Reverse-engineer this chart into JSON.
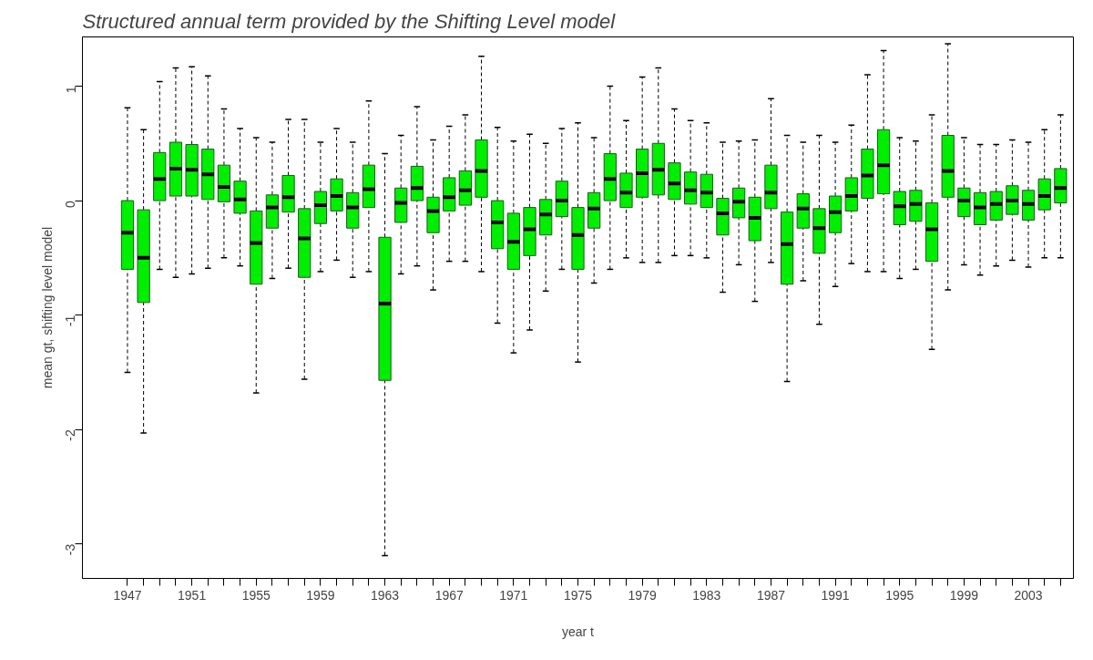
{
  "chart_data": {
    "type": "box",
    "title": "Structured annual term provided by the Shifting Level model",
    "xlabel": "year t",
    "ylabel": "mean gt, shifting level model",
    "color": "#00ee00",
    "xlim": [
      1944.2,
      2005.8
    ],
    "ylim": [
      -3.3,
      1.43
    ],
    "yticks": [
      -3,
      -2,
      -1,
      0,
      1
    ],
    "xticks": [
      1947,
      {
        "value": 1948,
        "label": null
      },
      {
        "value": 1949,
        "label": null
      },
      {
        "value": 1950,
        "label": null
      },
      1951,
      {
        "value": 1952,
        "label": null
      },
      {
        "value": 1953,
        "label": null
      },
      {
        "value": 1954,
        "label": null
      },
      1955,
      {
        "value": 1956,
        "label": null
      },
      {
        "value": 1957,
        "label": null
      },
      {
        "value": 1958,
        "label": null
      },
      1959,
      {
        "value": 1960,
        "label": null
      },
      {
        "value": 1961,
        "label": null
      },
      {
        "value": 1962,
        "label": null
      },
      1963,
      {
        "value": 1964,
        "label": null
      },
      {
        "value": 1965,
        "label": null
      },
      {
        "value": 1966,
        "label": null
      },
      1967,
      {
        "value": 1968,
        "label": null
      },
      {
        "value": 1969,
        "label": null
      },
      {
        "value": 1970,
        "label": null
      },
      1971,
      {
        "value": 1972,
        "label": null
      },
      {
        "value": 1973,
        "label": null
      },
      {
        "value": 1974,
        "label": null
      },
      1975,
      {
        "value": 1976,
        "label": null
      },
      {
        "value": 1977,
        "label": null
      },
      {
        "value": 1978,
        "label": null
      },
      1979,
      {
        "value": 1980,
        "label": null
      },
      {
        "value": 1981,
        "label": null
      },
      {
        "value": 1982,
        "label": null
      },
      1983,
      {
        "value": 1984,
        "label": null
      },
      {
        "value": 1985,
        "label": null
      },
      {
        "value": 1986,
        "label": null
      },
      1987,
      {
        "value": 1988,
        "label": null
      },
      {
        "value": 1989,
        "label": null
      },
      {
        "value": 1990,
        "label": null
      },
      1991,
      {
        "value": 1992,
        "label": null
      },
      {
        "value": 1993,
        "label": null
      },
      {
        "value": 1994,
        "label": null
      },
      1995,
      {
        "value": 1996,
        "label": null
      },
      {
        "value": 1997,
        "label": null
      },
      {
        "value": 1998,
        "label": null
      },
      1999,
      {
        "value": 2000,
        "label": null
      },
      {
        "value": 2001,
        "label": null
      },
      {
        "value": 2002,
        "label": null
      },
      2003,
      {
        "value": 2004,
        "label": null
      },
      {
        "value": 2005,
        "label": null
      }
    ],
    "grid": false,
    "x": [
      1947,
      1948,
      1949,
      1950,
      1951,
      1952,
      1953,
      1954,
      1955,
      1956,
      1957,
      1958,
      1959,
      1960,
      1961,
      1962,
      1963,
      1964,
      1965,
      1966,
      1967,
      1968,
      1969,
      1970,
      1971,
      1972,
      1973,
      1974,
      1975,
      1976,
      1977,
      1978,
      1979,
      1980,
      1981,
      1982,
      1983,
      1984,
      1985,
      1986,
      1987,
      1988,
      1989,
      1990,
      1991,
      1992,
      1993,
      1994,
      1995,
      1996,
      1997,
      1998,
      1999,
      2000,
      2001,
      2002,
      2003,
      2004,
      2005
    ],
    "boxes": [
      {
        "low": -1.5,
        "q1": -0.6,
        "median": -0.28,
        "q3": 0.0,
        "high": 0.81
      },
      {
        "low": -2.03,
        "q1": -0.89,
        "median": -0.5,
        "q3": -0.08,
        "high": 0.62
      },
      {
        "low": -0.6,
        "q1": 0.0,
        "median": 0.19,
        "q3": 0.42,
        "high": 1.04
      },
      {
        "low": -0.67,
        "q1": 0.04,
        "median": 0.28,
        "q3": 0.51,
        "high": 1.16
      },
      {
        "low": -0.64,
        "q1": 0.04,
        "median": 0.27,
        "q3": 0.49,
        "high": 1.17
      },
      {
        "low": -0.59,
        "q1": 0.01,
        "median": 0.23,
        "q3": 0.45,
        "high": 1.09
      },
      {
        "low": -0.5,
        "q1": -0.01,
        "median": 0.12,
        "q3": 0.31,
        "high": 0.8
      },
      {
        "low": -0.57,
        "q1": -0.11,
        "median": 0.01,
        "q3": 0.17,
        "high": 0.63
      },
      {
        "low": -1.68,
        "q1": -0.73,
        "median": -0.37,
        "q3": -0.09,
        "high": 0.55
      },
      {
        "low": -0.68,
        "q1": -0.24,
        "median": -0.06,
        "q3": 0.05,
        "high": 0.51
      },
      {
        "low": -0.59,
        "q1": -0.1,
        "median": 0.03,
        "q3": 0.22,
        "high": 0.71
      },
      {
        "low": -1.56,
        "q1": -0.67,
        "median": -0.33,
        "q3": -0.07,
        "high": 0.71
      },
      {
        "low": -0.62,
        "q1": -0.2,
        "median": -0.04,
        "q3": 0.08,
        "high": 0.51
      },
      {
        "low": -0.52,
        "q1": -0.09,
        "median": 0.04,
        "q3": 0.19,
        "high": 0.63
      },
      {
        "low": -0.67,
        "q1": -0.24,
        "median": -0.06,
        "q3": 0.07,
        "high": 0.51
      },
      {
        "low": -0.62,
        "q1": -0.06,
        "median": 0.1,
        "q3": 0.31,
        "high": 0.87
      },
      {
        "low": -3.1,
        "q1": -1.57,
        "median": -0.9,
        "q3": -0.32,
        "high": 0.41
      },
      {
        "low": -0.64,
        "q1": -0.19,
        "median": -0.02,
        "q3": 0.11,
        "high": 0.57
      },
      {
        "low": -0.57,
        "q1": 0.0,
        "median": 0.11,
        "q3": 0.3,
        "high": 0.82
      },
      {
        "low": -0.78,
        "q1": -0.28,
        "median": -0.09,
        "q3": 0.03,
        "high": 0.53
      },
      {
        "low": -0.53,
        "q1": -0.09,
        "median": 0.03,
        "q3": 0.2,
        "high": 0.65
      },
      {
        "low": -0.53,
        "q1": -0.04,
        "median": 0.09,
        "q3": 0.26,
        "high": 0.75
      },
      {
        "low": -0.62,
        "q1": 0.03,
        "median": 0.26,
        "q3": 0.53,
        "high": 1.26
      },
      {
        "low": -1.07,
        "q1": -0.42,
        "median": -0.19,
        "q3": 0.0,
        "high": 0.64
      },
      {
        "low": -1.33,
        "q1": -0.6,
        "median": -0.36,
        "q3": -0.11,
        "high": 0.52
      },
      {
        "low": -1.13,
        "q1": -0.48,
        "median": -0.25,
        "q3": -0.06,
        "high": 0.58
      },
      {
        "low": -0.79,
        "q1": -0.3,
        "median": -0.12,
        "q3": 0.01,
        "high": 0.5
      },
      {
        "low": -0.6,
        "q1": -0.14,
        "median": 0.0,
        "q3": 0.17,
        "high": 0.63
      },
      {
        "low": -1.41,
        "q1": -0.6,
        "median": -0.3,
        "q3": -0.06,
        "high": 0.68
      },
      {
        "low": -0.72,
        "q1": -0.24,
        "median": -0.07,
        "q3": 0.07,
        "high": 0.55
      },
      {
        "low": -0.6,
        "q1": 0.0,
        "median": 0.19,
        "q3": 0.41,
        "high": 1.0
      },
      {
        "low": -0.5,
        "q1": -0.06,
        "median": 0.07,
        "q3": 0.24,
        "high": 0.7
      },
      {
        "low": -0.54,
        "q1": 0.03,
        "median": 0.24,
        "q3": 0.45,
        "high": 1.08
      },
      {
        "low": -0.54,
        "q1": 0.05,
        "median": 0.27,
        "q3": 0.5,
        "high": 1.16
      },
      {
        "low": -0.48,
        "q1": 0.01,
        "median": 0.15,
        "q3": 0.33,
        "high": 0.8
      },
      {
        "low": -0.48,
        "q1": -0.03,
        "median": 0.09,
        "q3": 0.25,
        "high": 0.7
      },
      {
        "low": -0.5,
        "q1": -0.06,
        "median": 0.07,
        "q3": 0.23,
        "high": 0.68
      },
      {
        "low": -0.8,
        "q1": -0.3,
        "median": -0.11,
        "q3": 0.02,
        "high": 0.51
      },
      {
        "low": -0.56,
        "q1": -0.15,
        "median": -0.01,
        "q3": 0.11,
        "high": 0.52
      },
      {
        "low": -0.88,
        "q1": -0.35,
        "median": -0.15,
        "q3": 0.03,
        "high": 0.53
      },
      {
        "low": -0.54,
        "q1": -0.07,
        "median": 0.07,
        "q3": 0.31,
        "high": 0.89
      },
      {
        "low": -1.58,
        "q1": -0.73,
        "median": -0.38,
        "q3": -0.1,
        "high": 0.57
      },
      {
        "low": -0.7,
        "q1": -0.24,
        "median": -0.07,
        "q3": 0.06,
        "high": 0.51
      },
      {
        "low": -1.08,
        "q1": -0.46,
        "median": -0.24,
        "q3": -0.07,
        "high": 0.57
      },
      {
        "low": -0.75,
        "q1": -0.28,
        "median": -0.1,
        "q3": 0.04,
        "high": 0.51
      },
      {
        "low": -0.55,
        "q1": -0.09,
        "median": 0.04,
        "q3": 0.2,
        "high": 0.66
      },
      {
        "low": -0.62,
        "q1": 0.02,
        "median": 0.22,
        "q3": 0.45,
        "high": 1.1
      },
      {
        "low": -0.62,
        "q1": 0.06,
        "median": 0.31,
        "q3": 0.62,
        "high": 1.31
      },
      {
        "low": -0.68,
        "q1": -0.21,
        "median": -0.05,
        "q3": 0.08,
        "high": 0.55
      },
      {
        "low": -0.6,
        "q1": -0.18,
        "median": -0.03,
        "q3": 0.09,
        "high": 0.52
      },
      {
        "low": -1.3,
        "q1": -0.53,
        "median": -0.25,
        "q3": -0.02,
        "high": 0.75
      },
      {
        "low": -0.78,
        "q1": 0.03,
        "median": 0.26,
        "q3": 0.57,
        "high": 1.37
      },
      {
        "low": -0.56,
        "q1": -0.14,
        "median": 0.0,
        "q3": 0.11,
        "high": 0.55
      },
      {
        "low": -0.65,
        "q1": -0.21,
        "median": -0.06,
        "q3": 0.07,
        "high": 0.49
      },
      {
        "low": -0.57,
        "q1": -0.17,
        "median": -0.03,
        "q3": 0.08,
        "high": 0.49
      },
      {
        "low": -0.52,
        "q1": -0.12,
        "median": 0.0,
        "q3": 0.13,
        "high": 0.53
      },
      {
        "low": -0.58,
        "q1": -0.17,
        "median": -0.03,
        "q3": 0.09,
        "high": 0.51
      },
      {
        "low": -0.5,
        "q1": -0.08,
        "median": 0.04,
        "q3": 0.19,
        "high": 0.62
      },
      {
        "low": -0.5,
        "q1": -0.02,
        "median": 0.11,
        "q3": 0.28,
        "high": 0.75
      }
    ]
  }
}
